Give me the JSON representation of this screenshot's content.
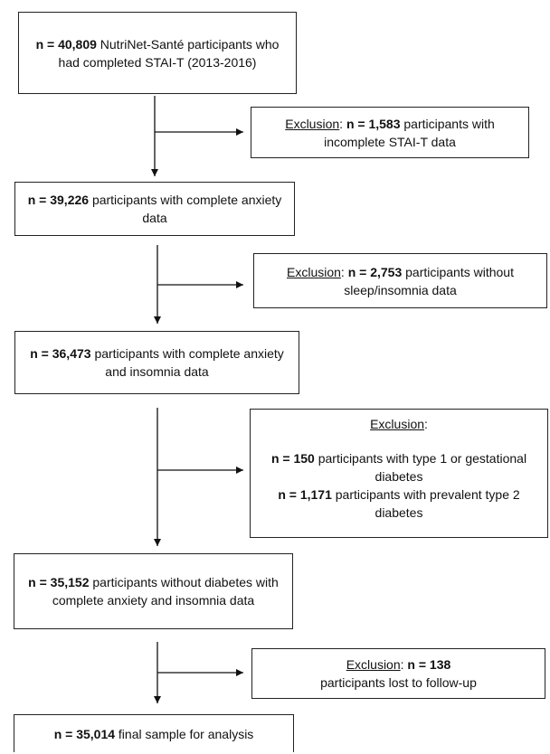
{
  "flow": {
    "box1": {
      "n": "n = 40,809",
      "text": "NutriNet-Santé participants who had completed STAI-T (2013-2016)"
    },
    "excl1": {
      "label": "Exclusion",
      "sep": ":",
      "n": "n = 1,583",
      "text": "participants with incomplete STAI-T data"
    },
    "box2": {
      "n": "n = 39,226",
      "text": "participants with complete anxiety data"
    },
    "excl2": {
      "label": "Exclusion",
      "sep": ":",
      "n": "n = 2,753",
      "text": "participants without sleep/insomnia data"
    },
    "box3": {
      "n": "n = 36,473",
      "text": "participants with complete anxiety and insomnia data"
    },
    "excl3": {
      "label": "Exclusion",
      "sep": ":",
      "item1_n": "n = 150",
      "item1_text": "participants with type 1 or gestational diabetes",
      "item2_n": "n = 1,171",
      "item2_text": "participants with prevalent type 2 diabetes"
    },
    "box4": {
      "n": "n = 35,152",
      "text": "participants without diabetes with complete anxiety and insomnia data"
    },
    "excl4": {
      "label": "Exclusion",
      "sep": ":",
      "n": "n = 138",
      "text": "participants lost to follow-up"
    },
    "box5": {
      "n": "n = 35,014",
      "text": "final sample for analysis"
    }
  }
}
